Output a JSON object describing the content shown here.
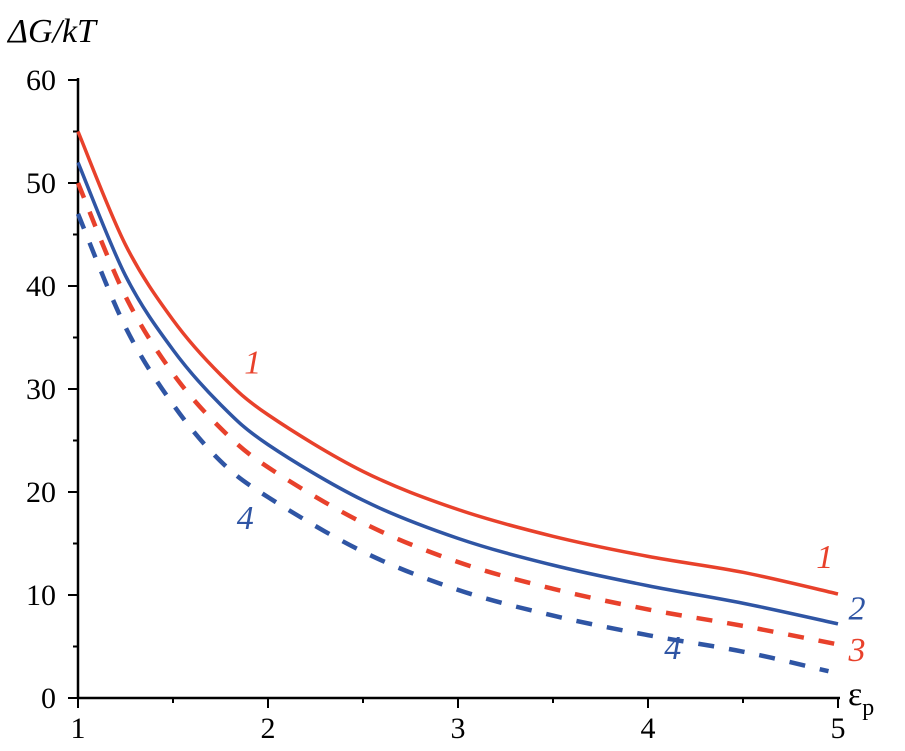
{
  "chart_data": {
    "type": "line",
    "title": "",
    "ylabel": "ΔG/kT",
    "xlabel_main": "ε",
    "xlabel_sub": "p",
    "xlim": [
      1,
      5
    ],
    "ylim": [
      0,
      60
    ],
    "x_ticks": [
      1,
      2,
      3,
      4,
      5
    ],
    "y_ticks": [
      0,
      10,
      20,
      30,
      40,
      50,
      60
    ],
    "grid": false,
    "legend": "none",
    "series": [
      {
        "label": "1",
        "style": "solid",
        "color": "#e8412b",
        "points": [
          [
            1.0,
            55.0
          ],
          [
            1.25,
            44.0
          ],
          [
            1.5,
            36.7
          ],
          [
            1.75,
            31.4
          ],
          [
            2.0,
            27.5
          ],
          [
            2.5,
            22.0
          ],
          [
            3.0,
            18.3
          ],
          [
            3.5,
            15.7
          ],
          [
            4.0,
            13.75
          ],
          [
            4.5,
            12.2
          ],
          [
            5.0,
            10.1
          ]
        ],
        "labels": [
          {
            "text": "1",
            "x": 1.92,
            "y": 31.5
          },
          {
            "text": "1",
            "x": 4.93,
            "y": 12.6
          }
        ]
      },
      {
        "label": "2",
        "style": "solid",
        "color": "#2f55a4",
        "points": [
          [
            1.0,
            52.0
          ],
          [
            1.25,
            41.0
          ],
          [
            1.5,
            33.8
          ],
          [
            1.75,
            28.5
          ],
          [
            2.0,
            24.6
          ],
          [
            2.5,
            19.2
          ],
          [
            3.0,
            15.5
          ],
          [
            3.5,
            12.9
          ],
          [
            4.0,
            10.9
          ],
          [
            4.5,
            9.2
          ],
          [
            5.0,
            7.2
          ]
        ],
        "labels": [
          {
            "text": "2",
            "x": 5.1,
            "y": 7.6
          }
        ]
      },
      {
        "label": "3",
        "style": "dashed",
        "color": "#e8412b",
        "points": [
          [
            1.0,
            50.0
          ],
          [
            1.25,
            39.0
          ],
          [
            1.5,
            31.5
          ],
          [
            1.75,
            26.2
          ],
          [
            2.0,
            22.4
          ],
          [
            2.5,
            17.0
          ],
          [
            3.0,
            13.2
          ],
          [
            3.5,
            10.6
          ],
          [
            4.0,
            8.6
          ],
          [
            4.5,
            7.0
          ],
          [
            5.0,
            5.2
          ]
        ],
        "labels": [
          {
            "text": "3",
            "x": 5.1,
            "y": 3.6
          }
        ]
      },
      {
        "label": "4",
        "style": "dashed",
        "color": "#2f55a4",
        "points": [
          [
            1.0,
            47.0
          ],
          [
            1.25,
            36.0
          ],
          [
            1.5,
            28.5
          ],
          [
            1.75,
            23.0
          ],
          [
            2.0,
            19.5
          ],
          [
            2.5,
            14.2
          ],
          [
            3.0,
            10.5
          ],
          [
            3.5,
            8.0
          ],
          [
            4.0,
            6.1
          ],
          [
            4.5,
            4.5
          ],
          [
            4.95,
            2.6
          ]
        ],
        "labels": [
          {
            "text": "4",
            "x": 1.88,
            "y": 16.4
          },
          {
            "text": "4",
            "x": 4.13,
            "y": 3.8
          }
        ]
      }
    ]
  }
}
